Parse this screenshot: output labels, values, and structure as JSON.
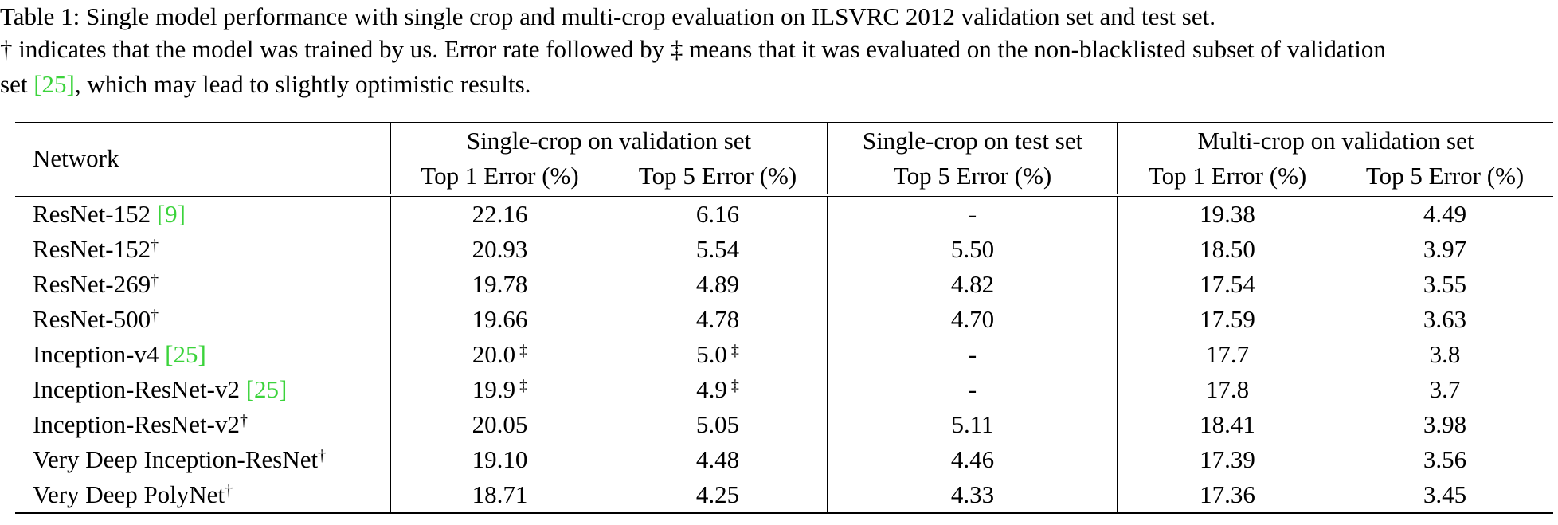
{
  "caption": {
    "label": "Table 1:",
    "line1": "Single model performance with single crop and multi-crop evaluation on ILSVRC 2012 validation set and test set.",
    "line2": "† indicates that the model was trained by us. Error rate followed by ‡ means that it was evaluated on the non-blacklisted subset of validation",
    "line3_start": "set",
    "cite": "[25]",
    "line3_end": ", which may lead to slightly optimistic results."
  },
  "table": {
    "corner": "Network",
    "groups": [
      "Single-crop on validation set",
      "Single-crop on test set",
      "Multi-crop on validation set"
    ],
    "group_spans": [
      2,
      1,
      2
    ],
    "columns": [
      "Top 1 Error (%)",
      "Top 5 Error (%)",
      "Top 5 Error (%)",
      "Top 1 Error (%)",
      "Top 5 Error (%)"
    ],
    "rows": [
      {
        "name": "ResNet-152",
        "cite": "[9]",
        "cells": [
          {
            "value": "22.16"
          },
          {
            "value": "6.16"
          },
          {
            "value": "-"
          },
          {
            "value": "19.38"
          },
          {
            "value": "4.49"
          }
        ]
      },
      {
        "name": "ResNet-152",
        "mark": "†",
        "cells": [
          {
            "value": "20.93"
          },
          {
            "value": "5.54"
          },
          {
            "value": "5.50"
          },
          {
            "value": "18.50"
          },
          {
            "value": "3.97"
          }
        ]
      },
      {
        "name": "ResNet-269",
        "mark": "†",
        "cells": [
          {
            "value": "19.78"
          },
          {
            "value": "4.89"
          },
          {
            "value": "4.82"
          },
          {
            "value": "17.54"
          },
          {
            "value": "3.55"
          }
        ]
      },
      {
        "name": "ResNet-500",
        "mark": "†",
        "cells": [
          {
            "value": "19.66"
          },
          {
            "value": "4.78"
          },
          {
            "value": "4.70"
          },
          {
            "value": "17.59"
          },
          {
            "value": "3.63"
          }
        ]
      },
      {
        "name": "Inception-v4",
        "cite": "[25]",
        "cells": [
          {
            "value": "20.0",
            "note": "‡"
          },
          {
            "value": "5.0",
            "note": "‡"
          },
          {
            "value": "-"
          },
          {
            "value": "17.7"
          },
          {
            "value": "3.8"
          }
        ]
      },
      {
        "name": "Inception-ResNet-v2",
        "cite": "[25]",
        "cells": [
          {
            "value": "19.9",
            "note": "‡"
          },
          {
            "value": "4.9",
            "note": "‡"
          },
          {
            "value": "-"
          },
          {
            "value": "17.8"
          },
          {
            "value": "3.7"
          }
        ]
      },
      {
        "name": "Inception-ResNet-v2",
        "mark": "†",
        "cells": [
          {
            "value": "20.05"
          },
          {
            "value": "5.05"
          },
          {
            "value": "5.11"
          },
          {
            "value": "18.41"
          },
          {
            "value": "3.98"
          }
        ]
      },
      {
        "name": "Very Deep Inception-ResNet",
        "mark": "†",
        "cells": [
          {
            "value": "19.10"
          },
          {
            "value": "4.48"
          },
          {
            "value": "4.46"
          },
          {
            "value": "17.39"
          },
          {
            "value": "3.56"
          }
        ]
      },
      {
        "name": "Very Deep PolyNet",
        "mark": "†",
        "bold": true,
        "cells": [
          {
            "value": "18.71"
          },
          {
            "value": "4.25"
          },
          {
            "value": "4.33"
          },
          {
            "value": "17.36"
          },
          {
            "value": "3.45"
          }
        ]
      }
    ]
  }
}
